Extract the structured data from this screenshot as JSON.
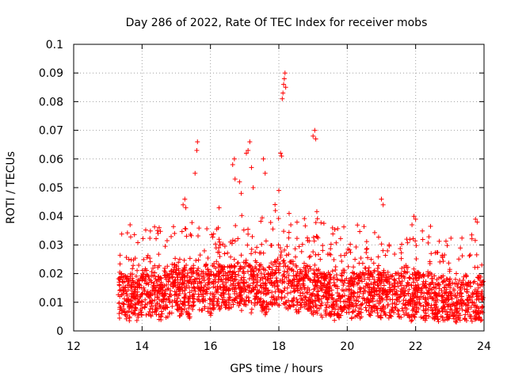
{
  "chart_data": {
    "type": "scatter",
    "title": "Day 286 of 2022, Rate Of TEC Index for receiver mobs",
    "xlabel": "GPS time / hours",
    "ylabel": "ROTI / TECUs",
    "xlim": [
      12,
      24
    ],
    "ylim": [
      0,
      0.1
    ],
    "xticks": [
      "12",
      "14",
      "16",
      "18",
      "20",
      "22",
      "24"
    ],
    "yticks": [
      "0",
      "0.01",
      "0.02",
      "0.03",
      "0.04",
      "0.05",
      "0.06",
      "0.07",
      "0.08",
      "0.09",
      "0.1"
    ],
    "grid": true,
    "marker": "+",
    "color": "#ff0000",
    "series": [
      {
        "x": [
          13.35,
          13.45,
          13.6,
          13.75,
          13.9,
          14.05,
          14.2,
          14.35,
          14.5,
          14.65,
          14.8,
          14.95,
          15.1,
          15.25,
          15.4,
          15.55,
          15.7,
          15.85,
          16.0,
          16.15,
          16.3,
          16.45,
          16.6,
          16.75,
          16.9,
          17.05,
          17.2,
          17.35,
          17.5,
          17.65,
          17.8,
          17.95,
          18.1,
          18.25,
          18.4,
          18.55,
          18.7,
          18.85,
          19.0,
          19.15,
          19.3,
          19.45,
          19.6,
          19.75,
          19.9,
          20.05,
          20.2,
          20.35,
          20.5,
          20.65,
          20.8,
          20.95,
          21.1,
          21.25,
          21.4,
          21.55,
          21.7,
          21.85,
          22.0,
          22.15,
          22.3,
          22.45,
          22.6,
          22.75,
          22.9,
          23.05,
          23.2,
          23.35,
          23.5,
          23.65,
          23.8,
          23.95,
          15.2,
          15.25,
          15.28,
          15.55,
          15.6,
          15.62,
          16.65,
          16.7,
          16.72,
          17.05,
          17.1,
          17.15,
          16.85,
          16.9,
          17.55,
          17.6,
          18.1,
          18.12,
          18.14,
          18.16,
          18.18,
          18.2,
          18.05,
          18.08,
          19.0,
          19.05,
          19.08,
          17.2,
          17.25,
          18.0,
          21.0,
          21.05,
          21.95,
          22.0,
          23.75,
          23.8,
          13.65,
          14.45,
          14.5,
          14.95,
          17.9,
          18.3,
          18.35
        ],
        "y": [
          0.012,
          0.014,
          0.011,
          0.013,
          0.01,
          0.015,
          0.012,
          0.014,
          0.011,
          0.013,
          0.012,
          0.016,
          0.013,
          0.015,
          0.012,
          0.018,
          0.014,
          0.016,
          0.013,
          0.017,
          0.015,
          0.014,
          0.016,
          0.018,
          0.015,
          0.017,
          0.014,
          0.016,
          0.015,
          0.013,
          0.017,
          0.016,
          0.018,
          0.015,
          0.017,
          0.014,
          0.016,
          0.015,
          0.013,
          0.014,
          0.012,
          0.013,
          0.011,
          0.012,
          0.014,
          0.011,
          0.013,
          0.012,
          0.014,
          0.013,
          0.015,
          0.012,
          0.014,
          0.011,
          0.013,
          0.012,
          0.014,
          0.011,
          0.013,
          0.012,
          0.011,
          0.013,
          0.01,
          0.012,
          0.011,
          0.013,
          0.01,
          0.012,
          0.011,
          0.01,
          0.012,
          0.011,
          0.044,
          0.046,
          0.043,
          0.055,
          0.063,
          0.066,
          0.058,
          0.06,
          0.053,
          0.062,
          0.063,
          0.066,
          0.052,
          0.048,
          0.06,
          0.055,
          0.081,
          0.083,
          0.086,
          0.088,
          0.09,
          0.085,
          0.062,
          0.061,
          0.068,
          0.07,
          0.067,
          0.057,
          0.05,
          0.049,
          0.046,
          0.044,
          0.04,
          0.039,
          0.039,
          0.038,
          0.037,
          0.035,
          0.036,
          0.034,
          0.042,
          0.041,
          0.037
        ]
      }
    ]
  }
}
